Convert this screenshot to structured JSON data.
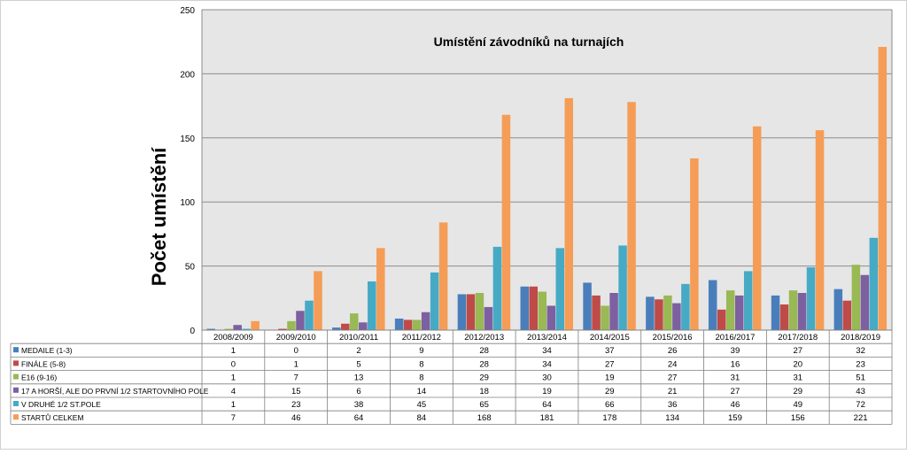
{
  "chart_data": {
    "type": "bar",
    "title": "Umístění závodníků na turnajích",
    "ylabel": "Počet umístění",
    "xlabel": "",
    "ylim": [
      0,
      250
    ],
    "yticks": [
      0,
      50,
      100,
      150,
      200,
      250
    ],
    "grid": true,
    "legend": "data-table-below",
    "categories": [
      "2008/2009",
      "2009/2010",
      "2010/2011",
      "2011/2012",
      "2012/2013",
      "2013/2014",
      "2014/2015",
      "2015/2016",
      "2016/2017",
      "2017/2018",
      "2018/2019"
    ],
    "series": [
      {
        "name": "MEDAILE (1-3)",
        "color": "#4a7ebb",
        "values": [
          1,
          0,
          2,
          9,
          28,
          34,
          37,
          26,
          39,
          27,
          32
        ]
      },
      {
        "name": "FINÁLE (5-8)",
        "color": "#be4b48",
        "values": [
          0,
          1,
          5,
          8,
          28,
          34,
          27,
          24,
          16,
          20,
          23
        ]
      },
      {
        "name": "E16 (9-16)",
        "color": "#98b954",
        "values": [
          1,
          7,
          13,
          8,
          29,
          30,
          19,
          27,
          31,
          31,
          51
        ]
      },
      {
        "name": "17 A HORŠÍ, ALE DO PRVNÍ 1/2 STARTOVNÍHO POLE",
        "color": "#7d60a0",
        "values": [
          4,
          15,
          6,
          14,
          18,
          19,
          29,
          21,
          27,
          29,
          43
        ]
      },
      {
        "name": "V DRUHÉ 1/2 ST.POLE",
        "color": "#46aac5",
        "values": [
          1,
          23,
          38,
          45,
          65,
          64,
          66,
          36,
          46,
          49,
          72
        ]
      },
      {
        "name": "STARTŮ CELKEM",
        "color": "#f59d56",
        "values": [
          7,
          46,
          64,
          84,
          168,
          181,
          178,
          134,
          159,
          156,
          221
        ]
      }
    ]
  },
  "colors": {
    "plot_background": "#e6e6e6",
    "gridline": "#8c8c8c"
  }
}
